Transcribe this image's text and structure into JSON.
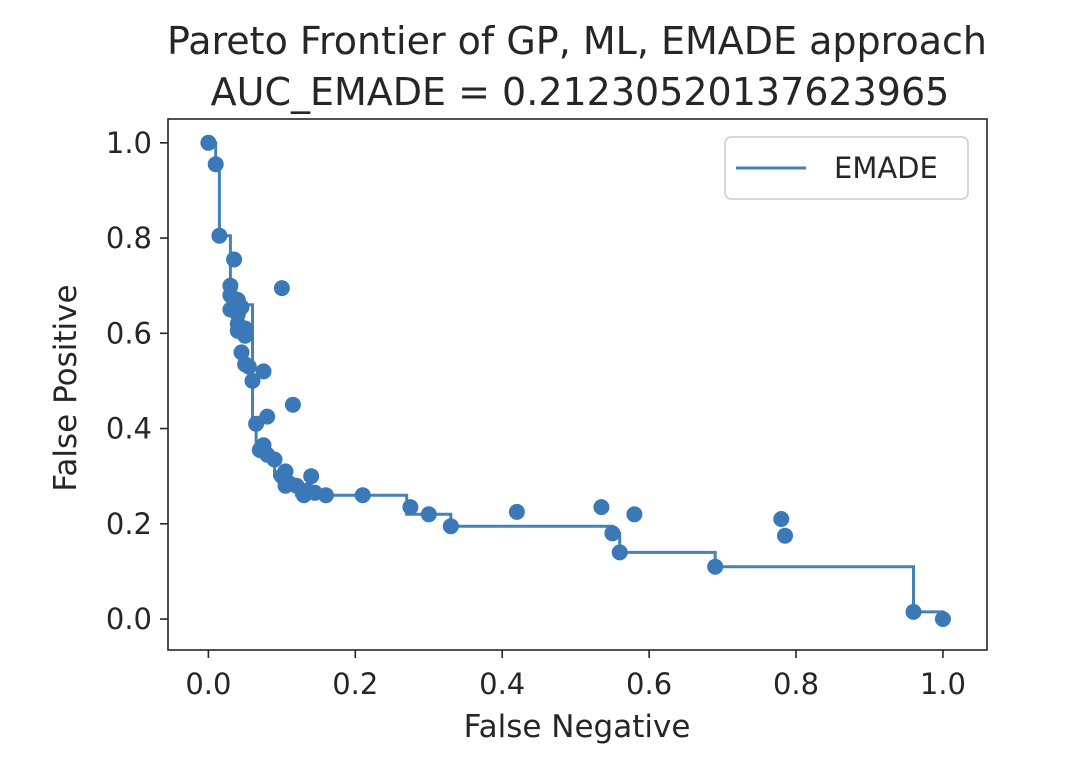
{
  "chart_data": {
    "type": "scatter",
    "title": "Pareto Frontier of GP, ML, EMADE approach",
    "subtitle": "AUC_EMADE = 0.21230520137623965",
    "xlabel": "False Negative",
    "ylabel": "False Positive",
    "xlim": [
      -0.055,
      1.06
    ],
    "ylim": [
      -0.065,
      1.05
    ],
    "x_ticks": [
      0.0,
      0.2,
      0.4,
      0.6,
      0.8,
      1.0
    ],
    "x_tick_labels": [
      "0.0",
      "0.2",
      "0.4",
      "0.6",
      "0.8",
      "1.0"
    ],
    "y_ticks": [
      0.0,
      0.2,
      0.4,
      0.6,
      0.8,
      1.0
    ],
    "y_tick_labels": [
      "0.0",
      "0.2",
      "0.4",
      "0.6",
      "0.8",
      "1.0"
    ],
    "grid": false,
    "legend": {
      "position": "top-right",
      "entries": [
        "EMADE"
      ]
    },
    "series": [
      {
        "name": "EMADE",
        "kind": "step",
        "color": "#4682b4",
        "x": [
          0.0,
          0.01,
          0.01,
          0.015,
          0.015,
          0.03,
          0.03,
          0.06,
          0.06,
          0.065,
          0.065,
          0.075,
          0.075,
          0.09,
          0.09,
          0.105,
          0.105,
          0.12,
          0.12,
          0.27,
          0.27,
          0.33,
          0.33,
          0.55,
          0.55,
          0.56,
          0.56,
          0.69,
          0.69,
          0.96,
          0.96,
          1.0,
          1.0
        ],
        "y": [
          1.0,
          1.0,
          0.955,
          0.955,
          0.805,
          0.805,
          0.66,
          0.66,
          0.41,
          0.41,
          0.355,
          0.355,
          0.335,
          0.335,
          0.3,
          0.3,
          0.28,
          0.28,
          0.26,
          0.26,
          0.22,
          0.22,
          0.195,
          0.195,
          0.18,
          0.18,
          0.14,
          0.14,
          0.11,
          0.11,
          0.015,
          0.015,
          0.0
        ]
      },
      {
        "name": "",
        "kind": "scatter",
        "color": "#3a78b8",
        "points": [
          [
            0.0,
            1.0
          ],
          [
            0.01,
            0.955
          ],
          [
            0.015,
            0.805
          ],
          [
            0.035,
            0.755
          ],
          [
            0.03,
            0.7
          ],
          [
            0.03,
            0.68
          ],
          [
            0.04,
            0.67
          ],
          [
            0.035,
            0.66
          ],
          [
            0.045,
            0.655
          ],
          [
            0.03,
            0.65
          ],
          [
            0.04,
            0.64
          ],
          [
            0.04,
            0.62
          ],
          [
            0.05,
            0.61
          ],
          [
            0.04,
            0.605
          ],
          [
            0.05,
            0.595
          ],
          [
            0.045,
            0.56
          ],
          [
            0.05,
            0.535
          ],
          [
            0.055,
            0.53
          ],
          [
            0.06,
            0.5
          ],
          [
            0.075,
            0.52
          ],
          [
            0.1,
            0.695
          ],
          [
            0.115,
            0.45
          ],
          [
            0.065,
            0.41
          ],
          [
            0.08,
            0.425
          ],
          [
            0.07,
            0.355
          ],
          [
            0.075,
            0.365
          ],
          [
            0.08,
            0.345
          ],
          [
            0.09,
            0.335
          ],
          [
            0.105,
            0.31
          ],
          [
            0.1,
            0.3
          ],
          [
            0.11,
            0.285
          ],
          [
            0.105,
            0.28
          ],
          [
            0.12,
            0.28
          ],
          [
            0.13,
            0.26
          ],
          [
            0.14,
            0.3
          ],
          [
            0.135,
            0.27
          ],
          [
            0.145,
            0.265
          ],
          [
            0.16,
            0.26
          ],
          [
            0.21,
            0.26
          ],
          [
            0.275,
            0.235
          ],
          [
            0.3,
            0.22
          ],
          [
            0.33,
            0.195
          ],
          [
            0.42,
            0.225
          ],
          [
            0.535,
            0.235
          ],
          [
            0.55,
            0.18
          ],
          [
            0.58,
            0.22
          ],
          [
            0.56,
            0.14
          ],
          [
            0.69,
            0.11
          ],
          [
            0.78,
            0.21
          ],
          [
            0.785,
            0.175
          ],
          [
            0.96,
            0.015
          ],
          [
            1.0,
            0.0
          ]
        ]
      }
    ]
  }
}
